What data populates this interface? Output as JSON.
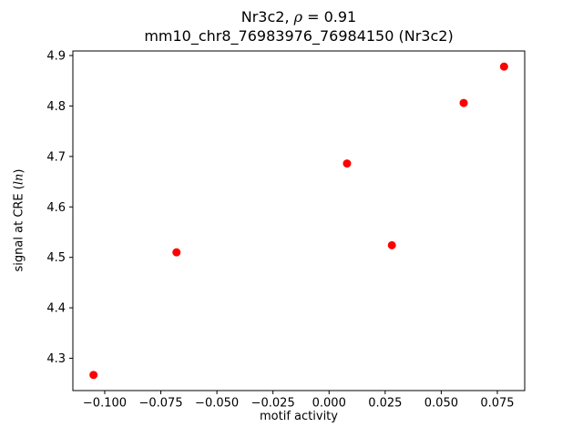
{
  "figure": {
    "title_line1_pre": "Nr3c2, ",
    "title_line1_rho": "ρ",
    "title_line1_post": " = 0.91",
    "title_line2": "mm10_chr8_76983976_76984150 (Nr3c2)",
    "xlabel": "motif activity",
    "ylabel_pre": "signal at CRE (",
    "ylabel_italic": "ln",
    "ylabel_post": ")"
  },
  "chart_data": {
    "type": "scatter",
    "title": "Nr3c2, ρ = 0.91\nmm10_chr8_76983976_76984150 (Nr3c2)",
    "xlabel": "motif activity",
    "ylabel": "signal at CRE (ln)",
    "marker_color": "#ff0000",
    "axis_color": "#000000",
    "grid": false,
    "legend": false,
    "xlim": [
      -0.1142,
      0.0872
    ],
    "ylim": [
      4.236,
      4.909
    ],
    "xticks": [
      -0.1,
      -0.075,
      -0.05,
      -0.025,
      0.0,
      0.025,
      0.05,
      0.075
    ],
    "xtick_labels": [
      "−0.100",
      "−0.075",
      "−0.050",
      "−0.025",
      "0.000",
      "0.025",
      "0.050",
      "0.075"
    ],
    "yticks": [
      4.3,
      4.4,
      4.5,
      4.6,
      4.7,
      4.8,
      4.9
    ],
    "ytick_labels": [
      "4.3",
      "4.4",
      "4.5",
      "4.6",
      "4.7",
      "4.8",
      "4.9"
    ],
    "points": [
      {
        "x": -0.105,
        "y": 4.267
      },
      {
        "x": -0.068,
        "y": 4.51
      },
      {
        "x": 0.008,
        "y": 4.686
      },
      {
        "x": 0.028,
        "y": 4.524
      },
      {
        "x": 0.06,
        "y": 4.806
      },
      {
        "x": 0.078,
        "y": 4.878
      }
    ]
  }
}
